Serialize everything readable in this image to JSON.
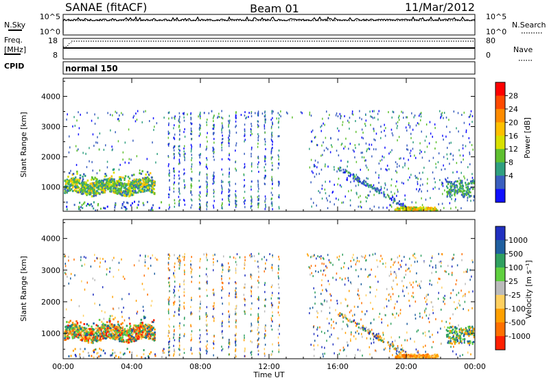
{
  "header": {
    "title": "SANAE (fitACF)",
    "beam": "Beam 01",
    "date": "11/Mar/2012"
  },
  "top_panels": {
    "nsky_label": "N.Sky",
    "nsky_ticks": [
      "10^5",
      "10^0"
    ],
    "nsearch_label": "N.Search",
    "nsearch_ticks": [
      "10^5",
      "10^0"
    ],
    "freq_label": "Freq.",
    "freq_unit": "[MHz]",
    "freq_ticks": [
      "18",
      "8"
    ],
    "nave_label": "Nave",
    "nave_ticks": [
      "80",
      "0"
    ],
    "cpid_label": "CPID",
    "cpid_value": "normal 150"
  },
  "chart_data": [
    {
      "type": "heatmap",
      "name": "power-panel",
      "xlabel": "Time UT",
      "ylabel": "Slant Range [km]",
      "x_ticks": [
        "00:00",
        "04:00",
        "08:00",
        "12:00",
        "16:00",
        "20:00",
        "00:00"
      ],
      "x_hours": [
        0,
        4,
        8,
        12,
        16,
        20,
        24
      ],
      "y_ticks": [
        1000,
        2000,
        3000,
        4000
      ],
      "ylim": [
        200,
        4600
      ],
      "xlim": [
        0,
        24
      ],
      "colorbar": {
        "label": "Power [dB]",
        "ticks": [
          "28",
          "24",
          "20",
          "16",
          "12",
          "8",
          "4"
        ],
        "colors": [
          "#ff0000",
          "#ff4a00",
          "#ff8c00",
          "#ffc000",
          "#d9e000",
          "#5fc030",
          "#30a080",
          "#3a5fbf",
          "#1010ff"
        ]
      }
    },
    {
      "type": "heatmap",
      "name": "velocity-panel",
      "xlabel": "Time UT",
      "ylabel": "Slant Range [km]",
      "x_ticks": [
        "00:00",
        "04:00",
        "08:00",
        "12:00",
        "16:00",
        "20:00",
        "00:00"
      ],
      "x_hours": [
        0,
        4,
        8,
        12,
        16,
        20,
        24
      ],
      "y_ticks": [
        1000,
        2000,
        3000,
        4000
      ],
      "ylim": [
        200,
        4600
      ],
      "xlim": [
        0,
        24
      ],
      "colorbar": {
        "label": "Velocity [m s⁻¹]",
        "ticks": [
          "1000",
          "500",
          "100",
          "25",
          "-25",
          "-100",
          "-500",
          "-1000"
        ],
        "colors": [
          "#2030c0",
          "#2060a0",
          "#30a060",
          "#60d040",
          "#bbbbbb",
          "#ffd060",
          "#ffa000",
          "#ff7000",
          "#ff2000"
        ]
      }
    }
  ]
}
